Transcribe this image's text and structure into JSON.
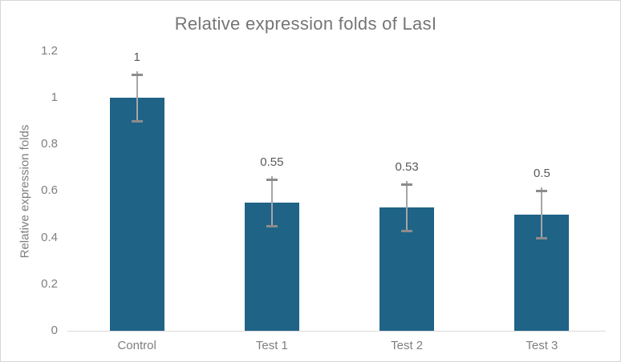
{
  "chart_data": {
    "type": "bar",
    "title": "Relative expression folds of LasI",
    "ylabel": "Relative expression folds",
    "xlabel": "",
    "categories": [
      "Control",
      "Test 1",
      "Test 2",
      "Test 3"
    ],
    "values": [
      1,
      0.55,
      0.53,
      0.5
    ],
    "value_labels": [
      "1",
      "0.55",
      "0.53",
      "0.5"
    ],
    "error_bars": [
      0.1,
      0.1,
      0.1,
      0.1
    ],
    "ylim": [
      0,
      1.2
    ],
    "yticks": [
      0,
      0.2,
      0.4,
      0.6,
      0.8,
      1,
      1.2
    ],
    "ytick_labels": [
      "0",
      "0.2",
      "0.4",
      "0.6",
      "0.8",
      "1",
      "1.2"
    ],
    "grid": false,
    "legend": false,
    "colors": {
      "bar": "#1f6387",
      "error_line": "#a6a6a6",
      "error_cap": "#8c8c8c",
      "axis_line": "#d9d9d9",
      "title_text": "#757575",
      "tick_text": "#7f7f7f",
      "value_text": "#595959"
    }
  }
}
